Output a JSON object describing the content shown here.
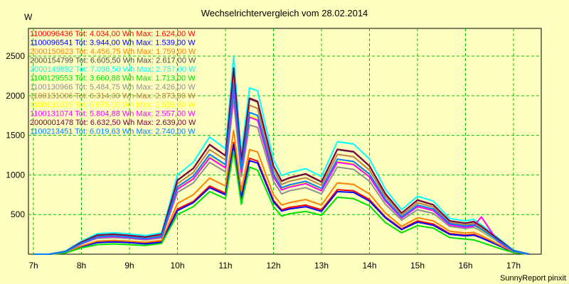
{
  "chart_data": {
    "type": "line",
    "title": "Wechselrichtervergleich vom 28.02.2014",
    "ylabel": "W",
    "xlabel": "",
    "ylim": [
      0,
      2850
    ],
    "yticks": [
      500,
      1000,
      1500,
      2000,
      2500
    ],
    "xticks": [
      "7h",
      "8h",
      "9h",
      "10h",
      "11h",
      "12h",
      "13h",
      "14h",
      "15h",
      "16h",
      "17h"
    ],
    "xlim": [
      7,
      17.7
    ],
    "grid": true,
    "legend_position": "top-left",
    "credit": "SunnyReport pinxit",
    "x": [
      7.0,
      7.33,
      7.67,
      8.0,
      8.33,
      8.67,
      9.0,
      9.33,
      9.67,
      10.0,
      10.33,
      10.67,
      11.0,
      11.17,
      11.33,
      11.5,
      11.67,
      12.0,
      12.17,
      12.33,
      12.67,
      13.0,
      13.33,
      13.67,
      14.0,
      14.33,
      14.67,
      15.0,
      15.33,
      15.67,
      16.0,
      16.17,
      16.33,
      16.67,
      17.0,
      17.33
    ],
    "series": [
      {
        "name": "1100096436 Tot: 4.034,00 Wh Max: 1.624,00 W",
        "color": "#ff0000",
        "values": [
          0,
          0,
          20,
          95,
          150,
          160,
          150,
          135,
          160,
          570,
          665,
          860,
          770,
          1410,
          720,
          1210,
          1175,
          680,
          560,
          590,
          620,
          560,
          815,
          800,
          690,
          470,
          320,
          420,
          380,
          260,
          240,
          250,
          210,
          120,
          30,
          0
        ]
      },
      {
        "name": "1100096541 Tot: 3.944,00 Wh Max: 1.539,00 W",
        "color": "#0000ff",
        "values": [
          0,
          0,
          20,
          95,
          145,
          155,
          145,
          130,
          150,
          550,
          650,
          840,
          750,
          1380,
          700,
          1180,
          1150,
          660,
          545,
          570,
          600,
          540,
          790,
          780,
          670,
          460,
          310,
          405,
          365,
          250,
          230,
          240,
          205,
          115,
          25,
          0
        ]
      },
      {
        "name": "2000150623 Tot: 4.456,75 Wh Max: 1.759,00 W",
        "color": "#ff8000",
        "values": [
          0,
          0,
          25,
          105,
          165,
          175,
          165,
          150,
          175,
          640,
          750,
          960,
          860,
          1560,
          800,
          1320,
          1290,
          750,
          620,
          650,
          690,
          620,
          900,
          880,
          760,
          520,
          350,
          460,
          420,
          290,
          265,
          275,
          235,
          130,
          30,
          0
        ]
      },
      {
        "name": "2000154799 Tot: 6.605,50 Wh Max: 2.617,00 W",
        "color": "#505050",
        "values": [
          0,
          0,
          35,
          150,
          240,
          250,
          235,
          215,
          250,
          930,
          1080,
          1380,
          1240,
          2340,
          1180,
          1960,
          1920,
          1110,
          920,
          960,
          1010,
          910,
          1320,
          1290,
          1110,
          760,
          520,
          680,
          620,
          420,
          390,
          410,
          350,
          195,
          45,
          0
        ]
      },
      {
        "name": "2000149892 Tot: 7.096,50 Wh Max: 2.757,00 W",
        "color": "#00ffff",
        "values": [
          0,
          0,
          40,
          165,
          260,
          270,
          255,
          235,
          270,
          1000,
          1160,
          1480,
          1330,
          2500,
          1270,
          2100,
          2060,
          1190,
          990,
          1030,
          1080,
          980,
          1420,
          1390,
          1200,
          820,
          560,
          730,
          670,
          450,
          420,
          440,
          370,
          210,
          50,
          0
        ]
      },
      {
        "name": "1100129553 Tot: 3.660,88 Wh Max: 1.713,00 W",
        "color": "#00e000",
        "values": [
          0,
          0,
          15,
          80,
          120,
          130,
          120,
          110,
          135,
          500,
          600,
          790,
          700,
          1300,
          630,
          1100,
          1060,
          600,
          480,
          510,
          540,
          490,
          720,
          700,
          610,
          400,
          270,
          360,
          330,
          210,
          190,
          180,
          150,
          80,
          20,
          0
        ]
      },
      {
        "name": "1100130966 Tot: 5.484,75 Wh Max: 2.426,00 W",
        "color": "#909090",
        "values": [
          0,
          0,
          30,
          130,
          200,
          210,
          200,
          180,
          205,
          780,
          900,
          1160,
          1040,
          1940,
          980,
          1630,
          1600,
          920,
          760,
          800,
          840,
          760,
          1100,
          1070,
          920,
          630,
          430,
          560,
          515,
          350,
          325,
          340,
          290,
          160,
          35,
          0
        ]
      },
      {
        "name": "1100131006 Tot: 6.314,00 Wh Max: 2.873,00 W",
        "color": "#c08040",
        "values": [
          0,
          0,
          35,
          145,
          230,
          240,
          225,
          205,
          240,
          890,
          1030,
          1320,
          1190,
          2240,
          1130,
          1880,
          1840,
          1060,
          880,
          920,
          965,
          870,
          1260,
          1230,
          1060,
          730,
          495,
          650,
          595,
          400,
          370,
          390,
          330,
          185,
          40,
          0
        ]
      },
      {
        "name": "1100131025 Tot: 5.875,00 Wh Max: 2.526,00 W",
        "color": "#ffff00",
        "values": [
          0,
          0,
          32,
          135,
          215,
          225,
          210,
          190,
          220,
          830,
          960,
          1230,
          1100,
          2080,
          1050,
          1750,
          1710,
          985,
          820,
          855,
          900,
          810,
          1170,
          1140,
          985,
          680,
          460,
          605,
          555,
          375,
          345,
          360,
          305,
          170,
          38,
          0
        ]
      },
      {
        "name": "1100131074 Tot: 5.804,88 Wh Max: 2.557,00 W",
        "color": "#ff00ff",
        "values": [
          0,
          0,
          32,
          133,
          212,
          222,
          208,
          188,
          218,
          820,
          950,
          1215,
          1090,
          2060,
          1040,
          1730,
          1690,
          975,
          810,
          845,
          890,
          800,
          1160,
          1130,
          975,
          670,
          455,
          600,
          550,
          370,
          340,
          355,
          470,
          165,
          36,
          0
        ]
      },
      {
        "name": "2000001478 Tot: 6.632,50 Wh Max: 2.639,00 W",
        "color": "#800040",
        "values": [
          0,
          0,
          36,
          152,
          242,
          252,
          237,
          217,
          252,
          935,
          1085,
          1385,
          1245,
          2350,
          1185,
          1970,
          1930,
          1115,
          925,
          965,
          1015,
          915,
          1325,
          1295,
          1115,
          765,
          520,
          685,
          625,
          420,
          392,
          412,
          352,
          197,
          45,
          0
        ]
      },
      {
        "name": "1100213451 Tot: 6.019,63 Wh Max: 2.740,00 W",
        "color": "#0080ff",
        "values": [
          0,
          0,
          33,
          138,
          220,
          230,
          215,
          195,
          225,
          850,
          985,
          1260,
          1130,
          2150,
          1075,
          1790,
          1750,
          1010,
          840,
          875,
          920,
          830,
          1200,
          1170,
          1010,
          695,
          470,
          620,
          570,
          385,
          355,
          370,
          315,
          175,
          40,
          0
        ]
      }
    ]
  }
}
